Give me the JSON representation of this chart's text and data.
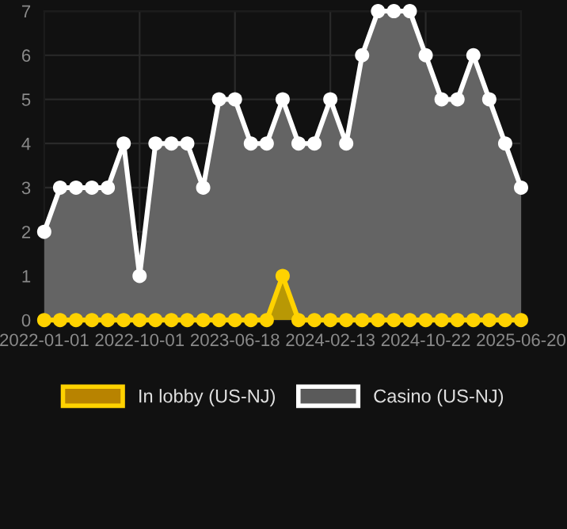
{
  "chart_data": {
    "type": "area",
    "categories": [
      "2022-01-01",
      null,
      null,
      null,
      null,
      null,
      "2022-10-01",
      null,
      null,
      null,
      null,
      null,
      "2023-06-18",
      null,
      null,
      null,
      null,
      null,
      "2024-02-13",
      null,
      null,
      null,
      null,
      null,
      "2024-10-22",
      null,
      null,
      null,
      null,
      null,
      "2025-06-20"
    ],
    "series": [
      {
        "name": "In lobby (US-NJ)",
        "color": "#ffd200",
        "values": [
          0,
          0,
          0,
          0,
          0,
          0,
          0,
          0,
          0,
          0,
          0,
          0,
          0,
          0,
          0,
          1,
          0,
          0,
          0,
          0,
          0,
          0,
          0,
          0,
          0,
          0,
          0,
          0,
          0,
          0,
          0
        ]
      },
      {
        "name": "Casino (US-NJ)",
        "color": "#ffffff",
        "values": [
          2,
          3,
          3,
          3,
          3,
          4,
          1,
          4,
          4,
          4,
          3,
          5,
          5,
          4,
          4,
          5,
          4,
          4,
          5,
          4,
          6,
          7,
          7,
          7,
          6,
          5,
          5,
          6,
          5,
          4,
          3
        ]
      }
    ],
    "ylim": [
      0,
      7
    ],
    "yticks": [
      0,
      1,
      2,
      3,
      4,
      5,
      6,
      7
    ],
    "grid": true,
    "legend": "bottom",
    "marker": "circle",
    "line_style": "solid"
  }
}
